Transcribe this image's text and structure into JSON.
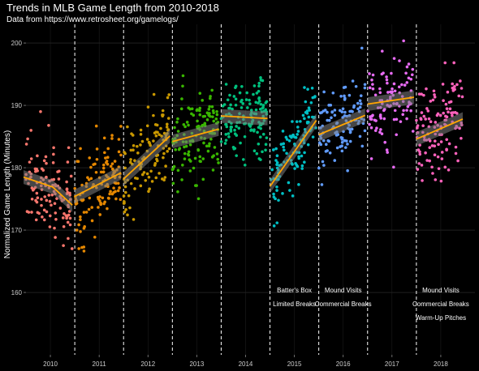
{
  "title": "Trends in MLB Game Length from 2010-2018",
  "subtitle": "Data from https://www.retrosheet.org/gamelogs/",
  "chart_data": {
    "type": "scatter",
    "ylabel": "Normalized Game Length (Minutes)",
    "xlabel": "",
    "x_domain": [
      2009.5,
      2018.7
    ],
    "ylim": [
      150,
      203
    ],
    "y_ticks": [
      160,
      170,
      180,
      190,
      200
    ],
    "categories": [
      "2010",
      "2011",
      "2012",
      "2013",
      "2014",
      "2015",
      "2016",
      "2017",
      "2018"
    ],
    "grid": true,
    "legend": "none",
    "background": "#000000",
    "series": [
      {
        "year": 2010,
        "color": "#F8766D",
        "n": 120,
        "trend": [
          [
            2009.45,
            178.5
          ],
          [
            2010.05,
            176.9
          ],
          [
            2010.45,
            174.0
          ]
        ],
        "center": [
          178.5,
          174.0
        ],
        "sd": 3.6
      },
      {
        "year": 2011,
        "color": "#E58700",
        "n": 120,
        "trend": [
          [
            2010.5,
            175.4
          ],
          [
            2011.45,
            179.2
          ]
        ],
        "center": [
          175.2,
          179.3
        ],
        "sd": 3.6
      },
      {
        "year": 2012,
        "color": "#C99800",
        "n": 110,
        "trend": [
          [
            2011.5,
            178.2
          ],
          [
            2012.45,
            185.1
          ]
        ],
        "center": [
          178.6,
          185.6
        ],
        "sd": 3.5
      },
      {
        "year": 2013,
        "color": "#A3A500",
        "n": 0,
        "trend": [],
        "center": [
          184.0,
          184.0
        ],
        "sd": 3.0
      },
      {
        "year": 2013,
        "color": "#39B600",
        "n": 130,
        "trend": [
          [
            2012.5,
            184.2
          ],
          [
            2013.45,
            186.2
          ]
        ],
        "center": [
          183.7,
          186.5
        ],
        "sd": 3.3
      },
      {
        "year": 2014,
        "color": "#00BF7D",
        "n": 130,
        "trend": [
          [
            2013.5,
            188.3
          ],
          [
            2014.45,
            187.9
          ]
        ],
        "center": [
          187.8,
          188.1
        ],
        "sd": 3.3
      },
      {
        "year": 2015,
        "color": "#00BFC4",
        "n": 110,
        "trend": [
          [
            2014.5,
            177.0
          ],
          [
            2015.45,
            187.6
          ]
        ],
        "center": [
          177.4,
          187.8
        ],
        "sd": 3.2
      },
      {
        "year": 2016,
        "color": "#619CFF",
        "n": 110,
        "trend": [
          [
            2015.5,
            185.3
          ],
          [
            2016.45,
            188.4
          ]
        ],
        "center": [
          185.2,
          188.7
        ],
        "sd": 3.3
      },
      {
        "year": 2017,
        "color": "#E76BF3",
        "n": 100,
        "trend": [
          [
            2016.5,
            190.2
          ],
          [
            2017.45,
            191.3
          ]
        ],
        "center": [
          190.1,
          191.4
        ],
        "sd": 3.5
      },
      {
        "year": 2018,
        "color": "#FF62BC",
        "n": 120,
        "trend": [
          [
            2017.5,
            184.6
          ],
          [
            2018.45,
            187.8
          ]
        ],
        "center": [
          184.5,
          188.0
        ],
        "sd": 3.5
      }
    ],
    "rule_changes": [
      2010.5,
      2011.5,
      2012.5,
      2013.5,
      2014.5,
      2015.5,
      2016.5,
      2017.5
    ],
    "annotations": [
      {
        "x": 2015.0,
        "y": 160.0,
        "text": "Batter's Box"
      },
      {
        "x": 2015.0,
        "y": 157.8,
        "text": "Limited Breaks"
      },
      {
        "x": 2016.0,
        "y": 160.0,
        "text": "Mound Visits"
      },
      {
        "x": 2016.0,
        "y": 157.8,
        "text": "Commercial Breaks"
      },
      {
        "x": 2018.0,
        "y": 160.0,
        "text": "Mound Visits"
      },
      {
        "x": 2018.0,
        "y": 157.8,
        "text": "Commercial Breaks"
      },
      {
        "x": 2018.0,
        "y": 155.6,
        "text": "Warm-Up Pitches"
      }
    ],
    "trend_color": "#FFA500",
    "band_color": "#808080"
  }
}
